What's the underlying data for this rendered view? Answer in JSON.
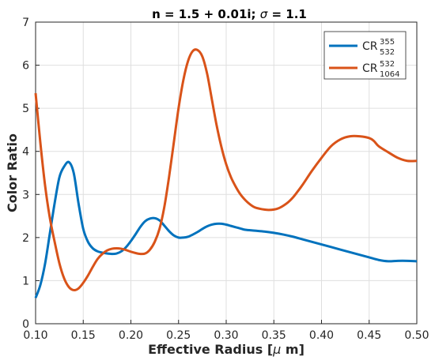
{
  "chart_data": {
    "type": "line",
    "title": "n = 1.5 + 0.01i; σ = 1.1",
    "title_parts": {
      "main": "n = 1.5 + 0.01i; ",
      "symbol": "σ",
      "tail": " = 1.1"
    },
    "xlabel": "Effective Radius [μ m]",
    "xlabel_parts": {
      "main": "Effective Radius [",
      "symbol": "μ",
      "tail": " m]"
    },
    "ylabel": "Color Ratio",
    "xlim": [
      0.1,
      0.5
    ],
    "ylim": [
      0,
      7
    ],
    "xticks": [
      "0.10",
      "0.15",
      "0.20",
      "0.25",
      "0.30",
      "0.35",
      "0.40",
      "0.45",
      "0.50"
    ],
    "yticks": [
      "0",
      "1",
      "2",
      "3",
      "4",
      "5",
      "6",
      "7"
    ],
    "grid": true,
    "legend_position": "top-right",
    "series": [
      {
        "name": "CR 355/532",
        "legend": {
          "base": "CR",
          "sup": "355",
          "sub": "532"
        },
        "color": "#0072BD",
        "x": [
          0.1,
          0.105,
          0.11,
          0.115,
          0.12,
          0.125,
          0.13,
          0.135,
          0.14,
          0.145,
          0.15,
          0.155,
          0.16,
          0.165,
          0.17,
          0.175,
          0.18,
          0.185,
          0.19,
          0.195,
          0.2,
          0.205,
          0.21,
          0.215,
          0.22,
          0.225,
          0.23,
          0.235,
          0.24,
          0.245,
          0.25,
          0.255,
          0.26,
          0.265,
          0.27,
          0.275,
          0.28,
          0.285,
          0.29,
          0.295,
          0.3,
          0.305,
          0.31,
          0.315,
          0.32,
          0.33,
          0.34,
          0.35,
          0.36,
          0.37,
          0.38,
          0.39,
          0.4,
          0.41,
          0.42,
          0.43,
          0.44,
          0.45,
          0.46,
          0.47,
          0.48,
          0.49,
          0.5
        ],
        "y": [
          0.6,
          0.9,
          1.4,
          2.1,
          2.8,
          3.4,
          3.65,
          3.75,
          3.5,
          2.8,
          2.2,
          1.9,
          1.75,
          1.68,
          1.65,
          1.63,
          1.62,
          1.63,
          1.68,
          1.78,
          1.92,
          2.08,
          2.25,
          2.38,
          2.44,
          2.45,
          2.4,
          2.28,
          2.15,
          2.05,
          2.0,
          2.0,
          2.02,
          2.07,
          2.13,
          2.2,
          2.26,
          2.3,
          2.32,
          2.32,
          2.3,
          2.27,
          2.24,
          2.21,
          2.18,
          2.16,
          2.14,
          2.11,
          2.07,
          2.02,
          1.96,
          1.9,
          1.84,
          1.78,
          1.72,
          1.66,
          1.6,
          1.54,
          1.48,
          1.45,
          1.46,
          1.46,
          1.45
        ]
      },
      {
        "name": "CR 532/1064",
        "legend": {
          "base": "CR",
          "sup": "532",
          "sub": "1064"
        },
        "color": "#D95319",
        "x": [
          0.1,
          0.105,
          0.11,
          0.115,
          0.12,
          0.125,
          0.13,
          0.135,
          0.14,
          0.145,
          0.15,
          0.155,
          0.16,
          0.165,
          0.17,
          0.175,
          0.18,
          0.185,
          0.19,
          0.195,
          0.2,
          0.205,
          0.21,
          0.215,
          0.22,
          0.225,
          0.23,
          0.235,
          0.24,
          0.245,
          0.25,
          0.255,
          0.26,
          0.265,
          0.27,
          0.275,
          0.28,
          0.285,
          0.29,
          0.295,
          0.3,
          0.305,
          0.31,
          0.315,
          0.32,
          0.325,
          0.33,
          0.335,
          0.34,
          0.345,
          0.35,
          0.355,
          0.36,
          0.365,
          0.37,
          0.375,
          0.38,
          0.39,
          0.4,
          0.41,
          0.42,
          0.43,
          0.44,
          0.45,
          0.455,
          0.46,
          0.47,
          0.48,
          0.49,
          0.5
        ],
        "y": [
          5.35,
          4.2,
          3.2,
          2.45,
          1.9,
          1.4,
          1.05,
          0.85,
          0.78,
          0.82,
          0.95,
          1.12,
          1.32,
          1.5,
          1.62,
          1.7,
          1.74,
          1.75,
          1.74,
          1.71,
          1.67,
          1.64,
          1.62,
          1.63,
          1.72,
          1.9,
          2.2,
          2.7,
          3.4,
          4.2,
          5.0,
          5.65,
          6.1,
          6.33,
          6.35,
          6.2,
          5.8,
          5.2,
          4.6,
          4.1,
          3.7,
          3.4,
          3.18,
          3.0,
          2.87,
          2.77,
          2.7,
          2.67,
          2.65,
          2.64,
          2.65,
          2.68,
          2.74,
          2.82,
          2.93,
          3.07,
          3.22,
          3.55,
          3.85,
          4.12,
          4.28,
          4.35,
          4.35,
          4.31,
          4.24,
          4.12,
          3.98,
          3.85,
          3.78,
          3.78
        ]
      }
    ]
  }
}
